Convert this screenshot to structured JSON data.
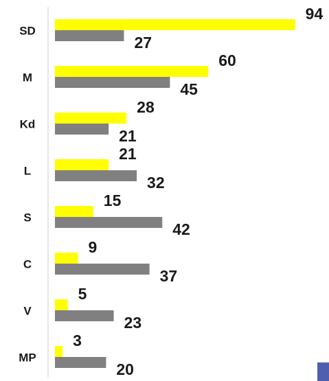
{
  "chart_data": {
    "type": "bar",
    "orientation": "horizontal",
    "categories": [
      "SD",
      "M",
      "Kd",
      "L",
      "S",
      "C",
      "V",
      "MP"
    ],
    "series": [
      {
        "color": "#ffff00",
        "values": [
          94,
          60,
          28,
          21,
          15,
          9,
          5,
          3
        ]
      },
      {
        "color": "#808080",
        "values": [
          27,
          45,
          21,
          32,
          42,
          37,
          23,
          20
        ]
      }
    ]
  }
}
